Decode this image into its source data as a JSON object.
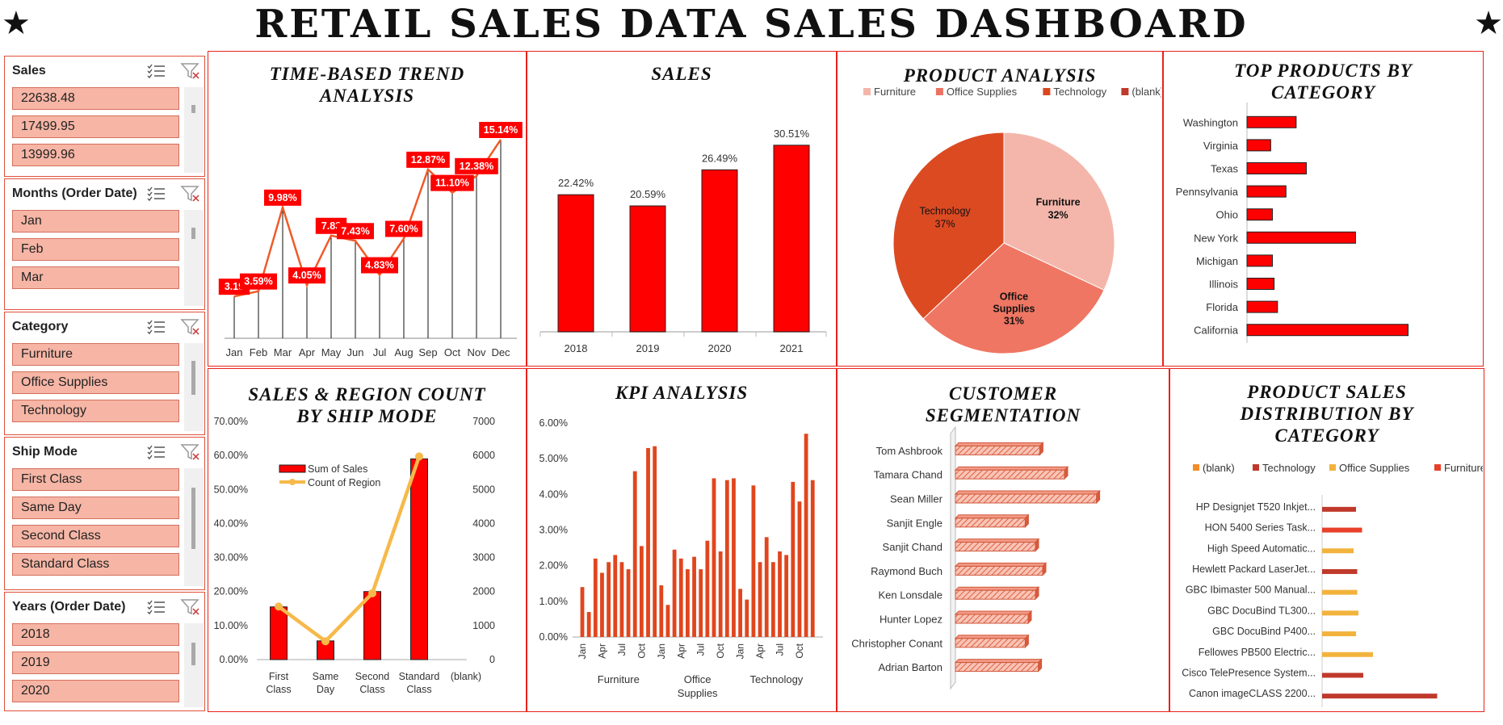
{
  "title": "RETAIL SALES DATA SALES DASHBOARD",
  "title_star": "★",
  "colors": {
    "accent": "#ff0000",
    "border": "#e8231b",
    "slicer_item": "#f6b5a5",
    "line_gold": "#f6b94a"
  },
  "slicers": [
    {
      "title": "Sales",
      "items": [
        "22638.48",
        "17499.95",
        "13999.96"
      ]
    },
    {
      "title": "Months (Order Date)",
      "items": [
        "Jan",
        "Feb",
        "Mar"
      ]
    },
    {
      "title": "Category",
      "items": [
        "Furniture",
        "Office Supplies",
        "Technology"
      ]
    },
    {
      "title": "Ship Mode",
      "items": [
        "First Class",
        "Same Day",
        "Second Class",
        "Standard Class"
      ]
    },
    {
      "title": "Years (Order Date)",
      "items": [
        "2018",
        "2019",
        "2020"
      ]
    }
  ],
  "slicer_icons": {
    "multi_select": "multi-select-icon",
    "clear_filter": "clear-filter-icon"
  },
  "panels": {
    "trend": {
      "title_line1": "TIME-BASED TREND",
      "title_line2": "ANALYSIS"
    },
    "sales": {
      "title": "SALES"
    },
    "product": {
      "title": "PRODUCT ANALYSIS"
    },
    "top": {
      "title_line1": "TOP PRODUCTS BY",
      "title_line2": "CATEGORY"
    },
    "shipmode": {
      "title_line1": "SALES & REGION COUNT",
      "title_line2": "BY SHIP MODE"
    },
    "kpi": {
      "title": "KPI ANALYSIS"
    },
    "customer": {
      "title_line1": "CUSTOMER",
      "title_line2": "SEGMENTATION"
    },
    "dist": {
      "title_line1": "PRODUCT SALES",
      "title_line2": "DISTRIBUTION BY",
      "title_line3": "CATEGORY"
    }
  },
  "chart_data": [
    {
      "id": "trend",
      "type": "line",
      "title": "TIME-BASED TREND ANALYSIS",
      "categories": [
        "Jan",
        "Feb",
        "Mar",
        "Apr",
        "May",
        "Jun",
        "Jul",
        "Aug",
        "Sep",
        "Oct",
        "Nov",
        "Dec"
      ],
      "values": [
        3.19,
        3.59,
        9.98,
        4.05,
        7.83,
        7.43,
        4.83,
        7.6,
        12.87,
        11.1,
        12.38,
        15.14
      ],
      "labels": [
        "3.19",
        "3.59%",
        "9.98%",
        "4.05%",
        "7.83",
        "7.43%",
        "4.83%",
        "7.60%",
        "12.87%",
        "11.10%",
        "12.38%",
        "15.14%"
      ],
      "ylim": [
        0,
        16
      ]
    },
    {
      "id": "sales",
      "type": "bar",
      "title": "SALES",
      "categories": [
        "2018",
        "2019",
        "2020",
        "2021"
      ],
      "values": [
        22.42,
        20.59,
        26.49,
        30.51
      ],
      "labels": [
        "22.42%",
        "20.59%",
        "26.49%",
        "30.51%"
      ],
      "ylim": [
        0,
        33
      ]
    },
    {
      "id": "product",
      "type": "pie",
      "title": "PRODUCT ANALYSIS",
      "legend": [
        "Furniture",
        "Office Supplies",
        "Technology",
        "(blank)"
      ],
      "legend_colors": [
        "#f4b6ab",
        "#ec7262",
        "#d9471f",
        "#c0392b"
      ],
      "slices": [
        {
          "name": "Furniture",
          "value": 32,
          "label": "Furniture",
          "pct": "32%",
          "color": "#f4b6ab"
        },
        {
          "name": "Office Supplies",
          "value": 31,
          "label1": "Office",
          "label2": "Supplies",
          "pct": "31%",
          "color": "#ef7663"
        },
        {
          "name": "Technology",
          "value": 37,
          "label": "Technology",
          "pct": "37%",
          "color": "#dc4a22"
        }
      ]
    },
    {
      "id": "top",
      "type": "bar",
      "title": "TOP PRODUCTS BY CATEGORY",
      "categories": [
        "Washington",
        "Virginia",
        "Texas",
        "Pennsylvania",
        "Ohio",
        "New York",
        "Michigan",
        "Illinois",
        "Florida",
        "California"
      ],
      "values": [
        29,
        14,
        35,
        23,
        15,
        64,
        15,
        16,
        18,
        95
      ],
      "xlim": [
        0,
        100
      ]
    },
    {
      "id": "shipmode",
      "type": "bar",
      "title": "SALES & REGION COUNT BY SHIP MODE",
      "categories": [
        "First Class",
        "Same Day",
        "Second Class",
        "Standard Class",
        "(blank)"
      ],
      "series": [
        {
          "name": "Sum of Sales",
          "values": [
            15.5,
            5.5,
            20,
            59,
            null
          ]
        },
        {
          "name": "Count of Region",
          "values": [
            1560,
            540,
            1950,
            5970,
            null
          ]
        }
      ],
      "y_ticks": [
        "0.00%",
        "10.00%",
        "20.00%",
        "30.00%",
        "40.00%",
        "50.00%",
        "60.00%",
        "70.00%"
      ],
      "y2_ticks": [
        "0",
        "1000",
        "2000",
        "3000",
        "4000",
        "5000",
        "6000",
        "7000"
      ],
      "ylim": [
        0,
        70
      ],
      "y2lim": [
        0,
        7000
      ]
    },
    {
      "id": "kpi",
      "type": "bar",
      "title": "KPI ANALYSIS",
      "groups": [
        "Furniture",
        "Office Supplies",
        "Technology"
      ],
      "group_label_lines": [
        [
          "Furniture"
        ],
        [
          "Office",
          "Supplies"
        ],
        [
          "Technology"
        ]
      ],
      "x_ticks": [
        "Jan",
        "Apr",
        "Jul",
        "Oct"
      ],
      "values": [
        [
          1.4,
          0.7,
          2.2,
          1.8,
          2.1,
          2.3,
          2.1,
          1.9,
          4.65,
          2.55,
          5.3,
          5.35
        ],
        [
          1.45,
          0.9,
          2.45,
          2.2,
          1.9,
          2.25,
          1.9,
          2.7,
          4.45,
          2.4,
          4.4,
          4.45
        ],
        [
          1.35,
          1.05,
          4.25,
          2.1,
          2.8,
          2.1,
          2.4,
          2.3,
          4.35,
          3.8,
          5.7,
          4.4
        ]
      ],
      "y_ticks": [
        "0.00%",
        "1.00%",
        "2.00%",
        "3.00%",
        "4.00%",
        "5.00%",
        "6.00%"
      ],
      "ylim": [
        0,
        6
      ]
    },
    {
      "id": "customer",
      "type": "bar",
      "title": "CUSTOMER SEGMENTATION",
      "categories": [
        "Tom Ashbrook",
        "Tamara Chand",
        "Sean Miller",
        "Sanjit Engle",
        "Sanjit Chand",
        "Raymond Buch",
        "Ken Lonsdale",
        "Hunter Lopez",
        "Christopher Conant",
        "Adrian Barton"
      ],
      "values": [
        58,
        75,
        97,
        48,
        55,
        60,
        55,
        50,
        48,
        57
      ],
      "xlim": [
        0,
        100
      ]
    },
    {
      "id": "dist",
      "type": "bar",
      "title": "PRODUCT SALES DISTRIBUTION BY CATEGORY",
      "legend": [
        "(blank)",
        "Technology",
        "Office Supplies",
        "Furniture"
      ],
      "legend_colors": [
        "#f28c28",
        "#c0392b",
        "#f2b33d",
        "#e8402a"
      ],
      "categories": [
        "HP Designjet T520 Inkjet...",
        "HON 5400 Series Task...",
        "High Speed Automatic...",
        "Hewlett Packard LaserJet...",
        "GBC Ibimaster 500 Manual...",
        "GBC DocuBind TL300...",
        "GBC DocuBind P400...",
        "Fellowes PB500 Electric...",
        "Cisco TelePresence System...",
        "Canon imageCLASS 2200..."
      ],
      "series_of": [
        "Technology",
        "Furniture",
        "Office Supplies",
        "Technology",
        "Office Supplies",
        "Office Supplies",
        "Office Supplies",
        "Office Supplies",
        "Technology",
        "Technology"
      ],
      "values": [
        28,
        33,
        26,
        29,
        29,
        30,
        28,
        42,
        34,
        95
      ],
      "xlim": [
        0,
        100
      ]
    }
  ]
}
